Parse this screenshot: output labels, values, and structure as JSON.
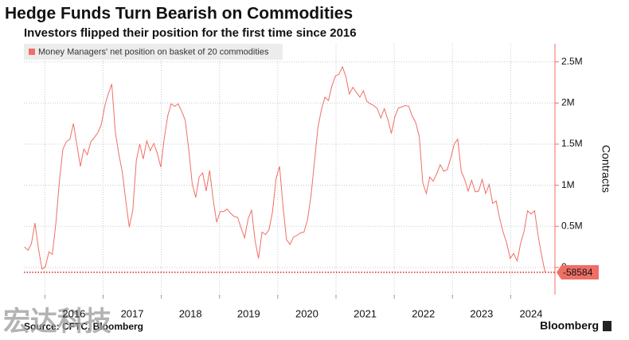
{
  "chart_data": {
    "type": "line",
    "title": "Hedge Funds Turn Bearish on Commodities",
    "subtitle": "Investors flipped their position for the first time since 2016",
    "y_axis_label": "Contracts",
    "source": "Source: CFTC, Bloomberg",
    "brand": "Bloomberg",
    "watermark": "宏达科技",
    "legend_position": "top-left",
    "grid": true,
    "xlim": [
      2015.64,
      2024.76
    ],
    "xticks": [
      2016,
      2017,
      2018,
      2019,
      2020,
      2021,
      2022,
      2023,
      2024
    ],
    "ylim": [
      -330000,
      2720000
    ],
    "yticks": [
      0,
      {
        "value": 500000,
        "label": "0.5M"
      },
      {
        "value": 1000000,
        "label": "1M"
      },
      {
        "value": 1500000,
        "label": "1.5M"
      },
      {
        "value": 2000000,
        "label": "2M"
      },
      {
        "value": 2500000,
        "label": "2.5M"
      }
    ],
    "x": [
      2015.65,
      2015.71,
      2015.77,
      2015.83,
      2015.89,
      2015.95,
      2016.01,
      2016.07,
      2016.13,
      2016.19,
      2016.25,
      2016.31,
      2016.37,
      2016.43,
      2016.49,
      2016.55,
      2016.61,
      2016.67,
      2016.73,
      2016.79,
      2016.85,
      2016.91,
      2016.97,
      2017.03,
      2017.09,
      2017.15,
      2017.21,
      2017.27,
      2017.33,
      2017.39,
      2017.45,
      2017.51,
      2017.57,
      2017.63,
      2017.69,
      2017.75,
      2017.81,
      2017.87,
      2017.93,
      2017.99,
      2018.05,
      2018.11,
      2018.17,
      2018.23,
      2018.29,
      2018.35,
      2018.41,
      2018.47,
      2018.53,
      2018.59,
      2018.65,
      2018.71,
      2018.77,
      2018.83,
      2018.89,
      2018.95,
      2019.01,
      2019.07,
      2019.13,
      2019.19,
      2019.25,
      2019.31,
      2019.37,
      2019.43,
      2019.49,
      2019.55,
      2019.61,
      2019.67,
      2019.73,
      2019.79,
      2019.85,
      2019.91,
      2019.97,
      2020.03,
      2020.09,
      2020.15,
      2020.21,
      2020.27,
      2020.33,
      2020.39,
      2020.45,
      2020.51,
      2020.57,
      2020.63,
      2020.69,
      2020.75,
      2020.81,
      2020.87,
      2020.93,
      2020.99,
      2021.05,
      2021.11,
      2021.17,
      2021.23,
      2021.29,
      2021.35,
      2021.41,
      2021.47,
      2021.53,
      2021.59,
      2021.65,
      2021.71,
      2021.77,
      2021.83,
      2021.89,
      2021.95,
      2022.01,
      2022.07,
      2022.13,
      2022.19,
      2022.25,
      2022.31,
      2022.37,
      2022.43,
      2022.49,
      2022.55,
      2022.61,
      2022.67,
      2022.73,
      2022.79,
      2022.85,
      2022.91,
      2022.97,
      2023.03,
      2023.09,
      2023.15,
      2023.21,
      2023.27,
      2023.33,
      2023.39,
      2023.45,
      2023.51,
      2023.57,
      2023.63,
      2023.69,
      2023.75,
      2023.81,
      2023.87,
      2023.93,
      2023.99,
      2024.05,
      2024.11,
      2024.17,
      2024.23,
      2024.29,
      2024.35,
      2024.41,
      2024.47,
      2024.53,
      2024.59
    ],
    "series": [
      {
        "name": "Money Managers' net position on basket of 20 commodities",
        "color": "#ef6f66",
        "values": [
          250000,
          210000,
          290000,
          540000,
          230000,
          -20000,
          10000,
          190000,
          160000,
          540000,
          1050000,
          1440000,
          1530000,
          1560000,
          1750000,
          1490000,
          1230000,
          1440000,
          1370000,
          1530000,
          1580000,
          1640000,
          1740000,
          1970000,
          2110000,
          2230000,
          1650000,
          1380000,
          1160000,
          810000,
          490000,
          700000,
          1300000,
          1500000,
          1320000,
          1540000,
          1420000,
          1510000,
          1390000,
          1220000,
          1570000,
          1840000,
          1990000,
          1960000,
          1990000,
          1900000,
          1790000,
          1440000,
          1020000,
          850000,
          1100000,
          1150000,
          930000,
          1180000,
          830000,
          550000,
          680000,
          680000,
          710000,
          660000,
          620000,
          610000,
          480000,
          360000,
          590000,
          700000,
          330000,
          110000,
          430000,
          400000,
          460000,
          680000,
          1080000,
          1230000,
          740000,
          340000,
          280000,
          370000,
          390000,
          420000,
          430000,
          580000,
          870000,
          1280000,
          1700000,
          1920000,
          2070000,
          2030000,
          2210000,
          2330000,
          2350000,
          2440000,
          2320000,
          2110000,
          2190000,
          2130000,
          2070000,
          2150000,
          2020000,
          1990000,
          1970000,
          1930000,
          1820000,
          1930000,
          1800000,
          1630000,
          1830000,
          1940000,
          1950000,
          1970000,
          1960000,
          1840000,
          1760000,
          1590000,
          1030000,
          900000,
          1100000,
          1050000,
          1140000,
          1250000,
          1170000,
          1190000,
          1330000,
          1500000,
          1560000,
          1170000,
          1070000,
          930000,
          1060000,
          920000,
          930000,
          1070000,
          900000,
          1010000,
          780000,
          810000,
          600000,
          430000,
          300000,
          110000,
          170000,
          80000,
          290000,
          440000,
          690000,
          650000,
          690000,
          390000,
          150000,
          -58584
        ]
      }
    ]
  }
}
